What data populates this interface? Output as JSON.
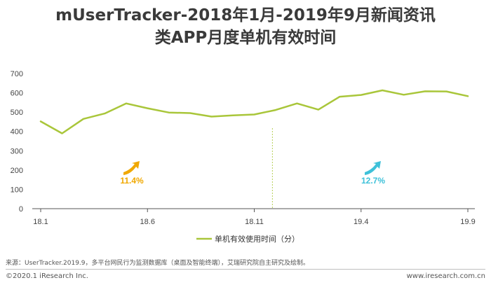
{
  "header": {
    "title_line1": "mUserTracker-2018年1月-2019年9月新闻资讯",
    "title_line2": "类APP月度单机有效时间"
  },
  "chart_data": {
    "type": "line",
    "title": "mUserTracker-2018年1月-2019年9月新闻资讯类APP月度单机有效时间",
    "xlabel": "",
    "ylabel": "",
    "x": [
      "18.1",
      "18.2",
      "18.3",
      "18.4",
      "18.5",
      "18.6",
      "18.7",
      "18.8",
      "18.9",
      "18.10",
      "18.11",
      "18.12",
      "19.1",
      "19.2",
      "19.3",
      "19.4",
      "19.5",
      "19.6",
      "19.7",
      "19.8",
      "19.9"
    ],
    "x_tick_labels": [
      "18.1",
      "18.6",
      "18.11",
      "19.4",
      "19.9"
    ],
    "series": [
      {
        "name": "单机有效使用时间（分）",
        "color": "#a9c63a",
        "values": [
          452,
          390,
          465,
          493,
          545,
          520,
          498,
          495,
          477,
          483,
          488,
          511,
          545,
          513,
          580,
          589,
          613,
          590,
          608,
          607,
          583
        ]
      }
    ],
    "ylim": [
      0,
      700
    ],
    "yticks": [
      0,
      100,
      200,
      300,
      400,
      500,
      600,
      700
    ],
    "grid": false,
    "legend": "bottom-center",
    "divider_after": "18.12",
    "growth_labels": [
      {
        "text": "11.4%",
        "color": "#f0a800",
        "icon": "up-arrow-icon"
      },
      {
        "text": "12.7%",
        "color": "#3ec1d9",
        "icon": "up-arrow-icon"
      }
    ]
  },
  "footer": {
    "source": "来源：UserTracker.2019.9，多平台网民行为监测数据库（桌面及智能终端），艾瑞研究院自主研究及绘制。",
    "copyright": "©2020.1 iResearch Inc.",
    "site": "www.iresearch.com.cn"
  }
}
